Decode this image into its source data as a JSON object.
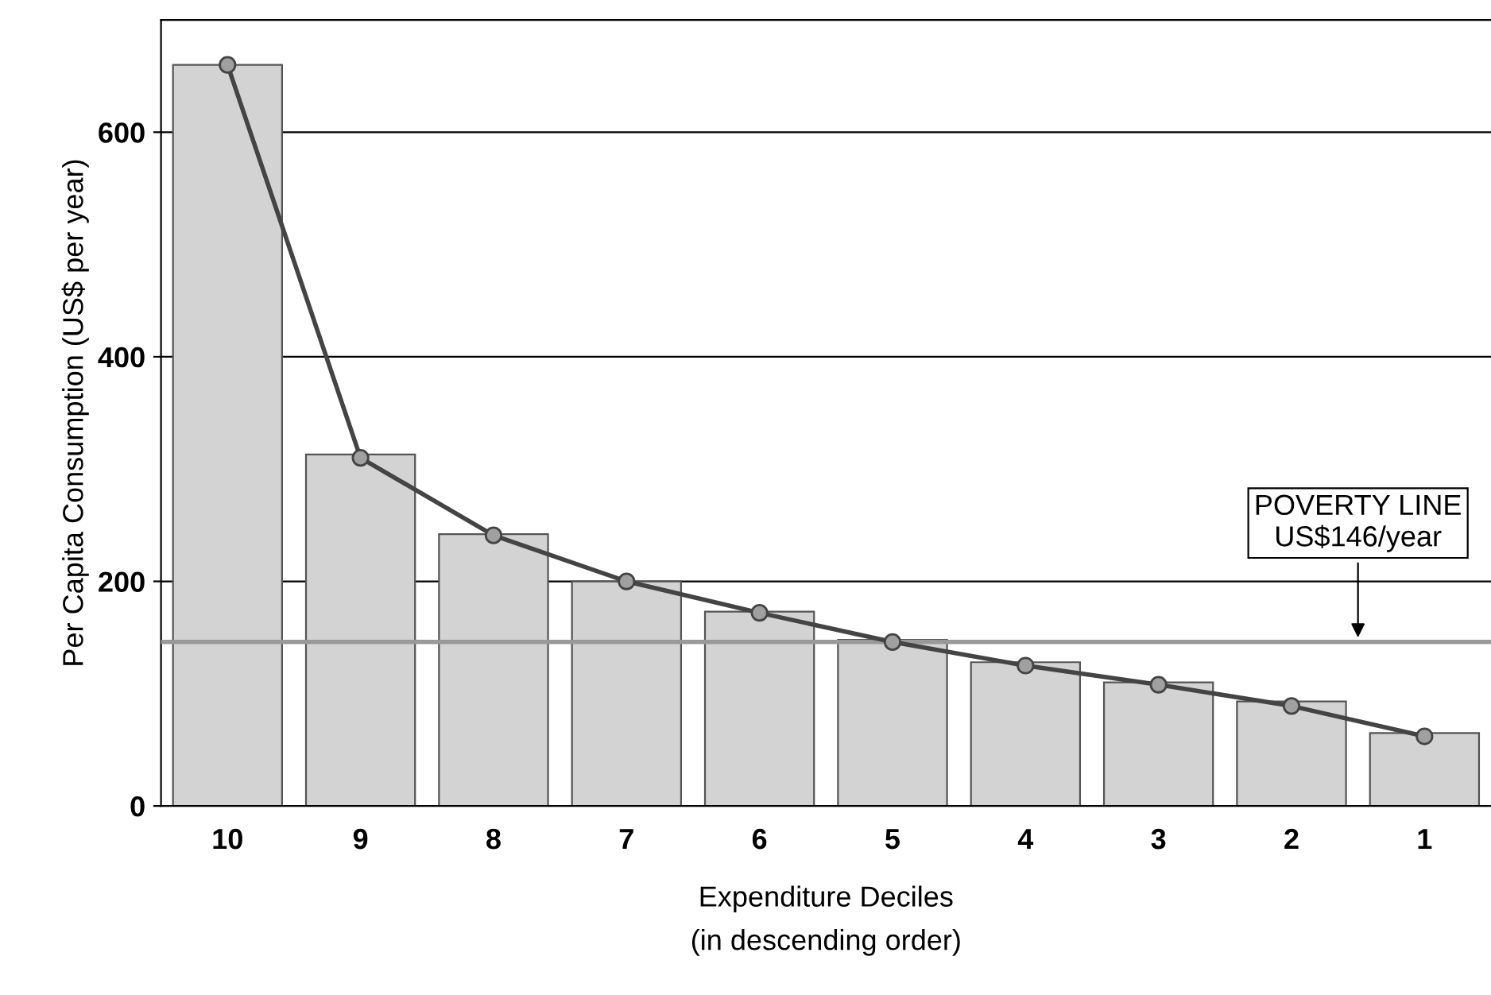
{
  "chart_data": {
    "type": "bar",
    "xlabel": "Expenditure Deciles\n(in descending order)",
    "ylabel": "Per Capita Consumption (US$ per year)",
    "categories": [
      "10",
      "9",
      "8",
      "7",
      "6",
      "5",
      "4",
      "3",
      "2",
      "1"
    ],
    "series": [
      {
        "color": "#d3d3d3",
        "values": [
          660,
          313,
          242,
          200,
          173,
          148,
          128,
          110,
          93,
          65
        ]
      },
      {
        "type": "line",
        "color": "#444444",
        "marker": "circle",
        "values": [
          660,
          310,
          241,
          200,
          172,
          146,
          125,
          108,
          89,
          62
        ]
      }
    ],
    "ylim": [
      0,
      700
    ],
    "yticks": [
      0,
      200,
      400,
      600
    ],
    "grid": "y",
    "legend": false,
    "ref_lines": [
      {
        "axis": "y",
        "value": 146,
        "label": "POVERTY LINE\nUS$146/year",
        "color": "#999999"
      }
    ]
  }
}
